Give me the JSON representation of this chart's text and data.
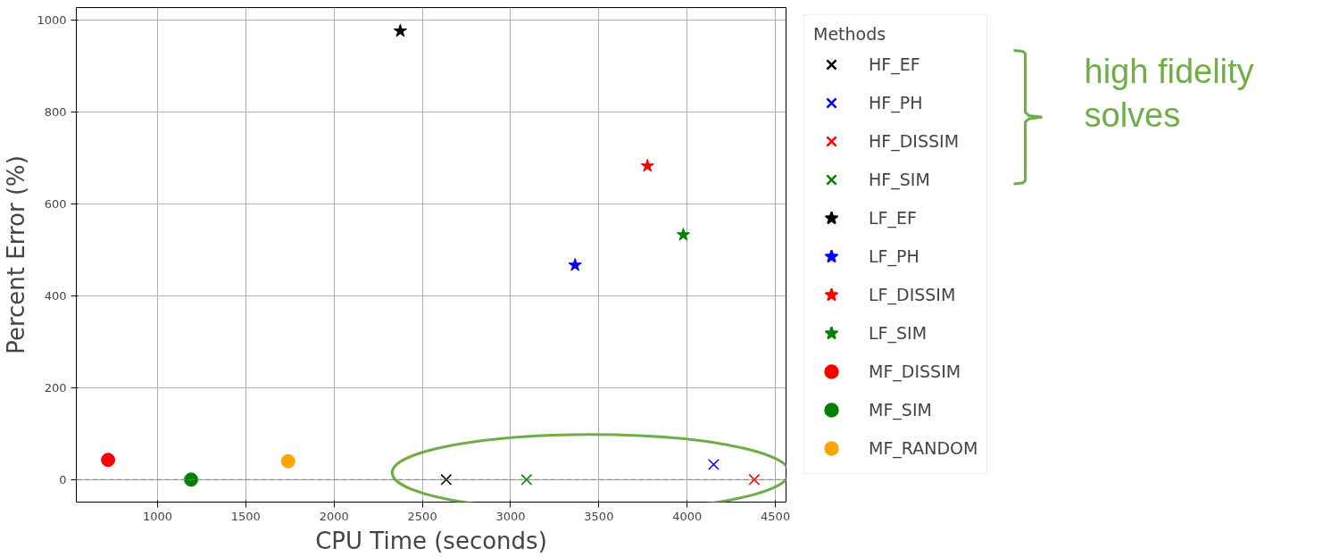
{
  "chart_data": {
    "type": "scatter",
    "xlabel": "CPU Time (seconds)",
    "ylabel": "Percent Error (%)",
    "legend_title": "Methods",
    "legend": "right",
    "grid": true,
    "xlim": [
      540,
      4560
    ],
    "ylim": [
      -49,
      1028
    ],
    "xticks": [
      1000,
      1500,
      2000,
      2500,
      3000,
      3500,
      4000,
      4500
    ],
    "yticks": [
      0,
      200,
      400,
      600,
      800,
      1000
    ],
    "ref_lines": [
      {
        "axis": "y",
        "value": 0,
        "color": "#808080",
        "line_style": "dashed"
      }
    ],
    "annotations": [
      "high fidelity solves"
    ],
    "series": [
      {
        "name": "HF_EF",
        "color": "#000000",
        "marker": "cross",
        "x": [
          2635
        ],
        "values": [
          0
        ]
      },
      {
        "name": "HF_PH",
        "color": "#0000ff",
        "marker": "cross",
        "x": [
          4150
        ],
        "values": [
          33
        ]
      },
      {
        "name": "HF_DISSIM",
        "color": "#ff0000",
        "marker": "cross",
        "x": [
          4380
        ],
        "values": [
          0
        ]
      },
      {
        "name": "HF_SIM",
        "color": "#008000",
        "marker": "cross",
        "x": [
          3090
        ],
        "values": [
          0
        ]
      },
      {
        "name": "LF_EF",
        "color": "#000000",
        "marker": "star",
        "x": [
          2375
        ],
        "values": [
          977
        ]
      },
      {
        "name": "LF_PH",
        "color": "#0000ff",
        "marker": "star",
        "x": [
          3365
        ],
        "values": [
          467
        ]
      },
      {
        "name": "LF_DISSIM",
        "color": "#ff0000",
        "marker": "star",
        "x": [
          3775
        ],
        "values": [
          683
        ]
      },
      {
        "name": "LF_SIM",
        "color": "#008000",
        "marker": "star",
        "x": [
          3978
        ],
        "values": [
          533
        ]
      },
      {
        "name": "MF_DISSIM",
        "color": "#ff0000",
        "marker": "circle",
        "x": [
          720
        ],
        "values": [
          43
        ]
      },
      {
        "name": "MF_SIM",
        "color": "#008000",
        "marker": "circle",
        "x": [
          1190
        ],
        "values": [
          0
        ]
      },
      {
        "name": "MF_RANDOM",
        "color": "#ffa500",
        "marker": "circle",
        "x": [
          1740
        ],
        "values": [
          40
        ]
      }
    ]
  }
}
